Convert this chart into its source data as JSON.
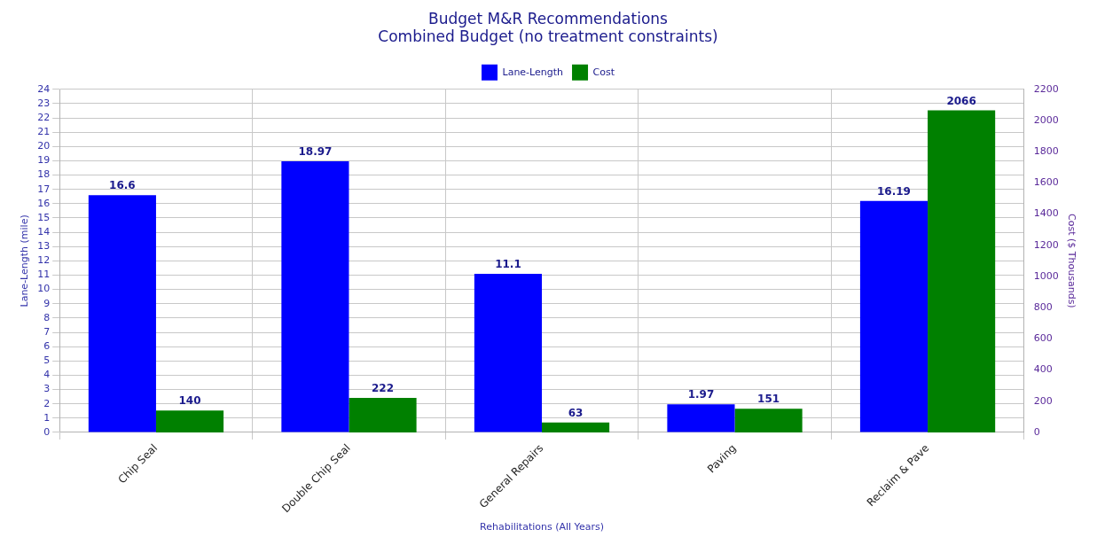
{
  "chart_data": {
    "type": "bar",
    "title": "Budget M&R Recommendations",
    "subtitle": "Combined Budget (no treatment constraints)",
    "xlabel": "Rehabilitations (All Years)",
    "ylabel": "Lane-Length (mile)",
    "y2label": "Cost ($ Thousands)",
    "categories": [
      "Chip Seal",
      "Double Chip Seal",
      "General Repairs",
      "Paving",
      "Reclaim & Pave"
    ],
    "series": [
      {
        "name": "Lane-Length",
        "color": "#0000ff",
        "values": [
          16.6,
          18.97,
          11.1,
          1.97,
          16.19
        ]
      },
      {
        "name": "Cost",
        "color": "#008000",
        "axis": "y2",
        "values": [
          140,
          222,
          63,
          151,
          2066
        ]
      }
    ],
    "ylim": [
      0,
      24
    ],
    "yticks": [
      0,
      1,
      2,
      3,
      4,
      5,
      6,
      7,
      8,
      9,
      10,
      11,
      12,
      13,
      14,
      15,
      16,
      17,
      18,
      19,
      20,
      21,
      22,
      23,
      24
    ],
    "y2lim": [
      0,
      2200
    ],
    "y2ticks": [
      0,
      200,
      400,
      600,
      800,
      1000,
      1200,
      1400,
      1600,
      1800,
      2000,
      2200
    ],
    "grid": true,
    "legend": "top",
    "data_labels": true
  }
}
